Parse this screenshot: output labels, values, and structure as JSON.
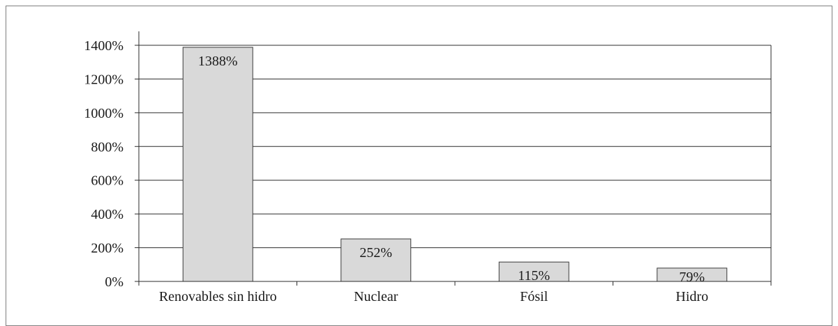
{
  "chart_data": {
    "type": "bar",
    "categories": [
      "Renovables sin hidro",
      "Nuclear",
      "Fósil",
      "Hidro"
    ],
    "values": [
      1388,
      252,
      115,
      79
    ],
    "data_labels": [
      "1388%",
      "252%",
      "115%",
      "79%"
    ],
    "y_ticks": [
      "0%",
      "200%",
      "400%",
      "600%",
      "800%",
      "1000%",
      "1200%",
      "1400%"
    ],
    "ylim": [
      0,
      1400
    ],
    "y_unit": "%",
    "grid": true,
    "legend": "none",
    "colors": {
      "bar_fill": "#d9d9d9",
      "bar_stroke": "#3a3a3a",
      "grid": "#2b2b2b",
      "axis": "#2b2b2b"
    }
  }
}
